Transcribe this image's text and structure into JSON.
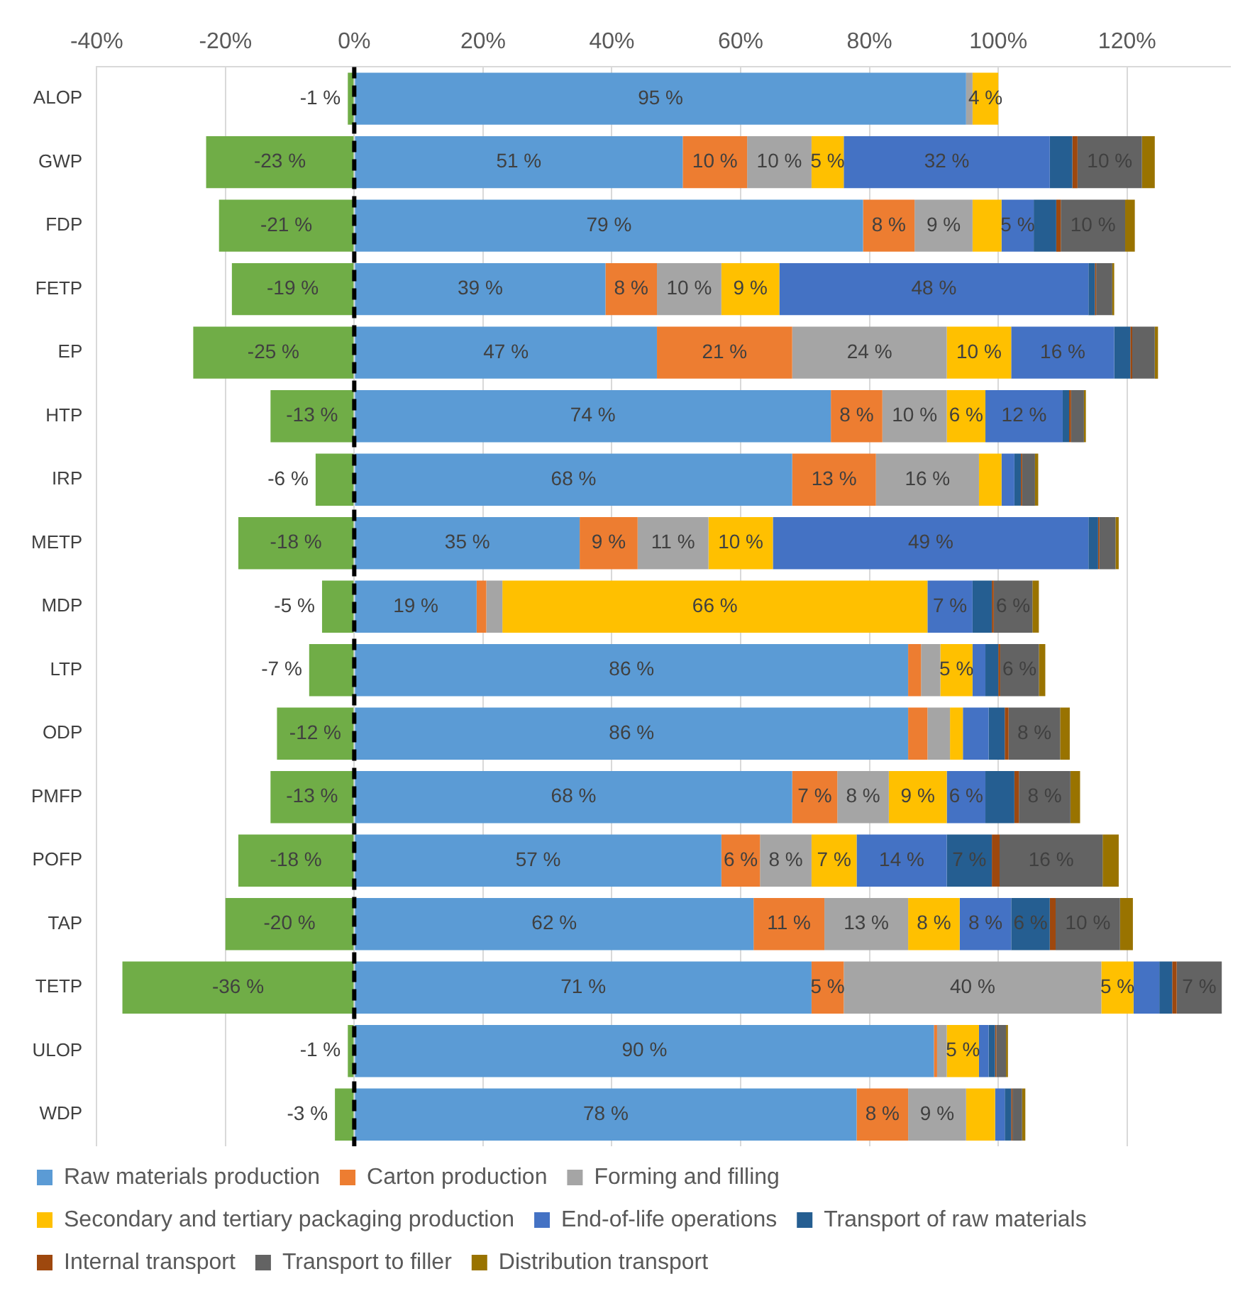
{
  "chart_data": {
    "type": "bar",
    "orientation": "horizontal",
    "stacked": true,
    "categories": [
      "ALOP",
      "GWP",
      "FDP",
      "FETP",
      "EP",
      "HTP",
      "IRP",
      "METP",
      "MDP",
      "LTP",
      "ODP",
      "PMFP",
      "POFP",
      "TAP",
      "TETP",
      "ULOP",
      "WDP"
    ],
    "series": [
      {
        "name": "Raw materials production",
        "color": "#5b9bd5",
        "values": [
          95,
          51,
          79,
          39,
          47,
          74,
          68,
          35,
          19,
          86,
          86,
          68,
          57,
          62,
          71,
          90,
          78
        ],
        "value_labels": [
          "95 %",
          "51 %",
          "79 %",
          "39 %",
          "47 %",
          "74 %",
          "68 %",
          "35 %",
          "19 %",
          "86 %",
          "86 %",
          "68 %",
          "57 %",
          "62 %",
          "71 %",
          "90 %",
          "78 %"
        ]
      },
      {
        "name": "Carton production",
        "color": "#ed7d31",
        "values": [
          null,
          10,
          8,
          8,
          21,
          8,
          13,
          9,
          1.5,
          2,
          3,
          7,
          6,
          11,
          5,
          0.5,
          8
        ],
        "value_labels": [
          null,
          "10 %",
          "8 %",
          "8 %",
          "21 %",
          "8 %",
          "13 %",
          "9 %",
          null,
          null,
          null,
          "7 %",
          "6 %",
          "11 %",
          "5 %",
          null,
          "8 %"
        ]
      },
      {
        "name": "Forming and filling",
        "color": "#a5a5a5",
        "values": [
          1,
          10,
          9,
          10,
          24,
          10,
          16,
          11,
          2.5,
          3,
          3.5,
          8,
          8,
          13,
          40,
          1.5,
          9
        ],
        "value_labels": [
          null,
          "10 %",
          "9 %",
          "10 %",
          "24 %",
          "10 %",
          "16 %",
          "11 %",
          null,
          null,
          null,
          "8 %",
          "8 %",
          "13 %",
          "40 %",
          null,
          "9 %"
        ]
      },
      {
        "name": "Secondary and tertiary packaging production",
        "color": "#ffc000",
        "values": [
          4,
          5,
          4.5,
          9,
          10,
          6,
          3.5,
          10,
          66,
          5,
          2,
          9,
          7,
          8,
          5,
          5,
          4.5
        ],
        "value_labels": [
          "4 %",
          "5 %",
          null,
          "9 %",
          "10 %",
          "6 %",
          null,
          "10 %",
          "66 %",
          "5 %",
          null,
          "9 %",
          "7 %",
          "8 %",
          "5 %",
          "5 %",
          null
        ]
      },
      {
        "name": "End-of-life operations",
        "color": "#4472c4",
        "values": [
          null,
          32,
          5,
          48,
          16,
          12,
          2,
          49,
          7,
          2,
          4,
          6,
          14,
          8,
          4,
          1.5,
          1.5
        ],
        "value_labels": [
          null,
          "32 %",
          "5 %",
          "48 %",
          "16 %",
          "12 %",
          null,
          "49 %",
          "7 %",
          null,
          null,
          "6 %",
          "14 %",
          "8 %",
          null,
          null,
          null
        ]
      },
      {
        "name": "Transport of raw materials",
        "color": "#255e91",
        "values": [
          null,
          3.5,
          3.5,
          1,
          2.5,
          1,
          1,
          1.5,
          3,
          2,
          2.5,
          4.5,
          7,
          6,
          2,
          1,
          1
        ],
        "value_labels": [
          null,
          null,
          null,
          null,
          null,
          null,
          null,
          null,
          null,
          null,
          null,
          null,
          "7 %",
          "6 %",
          null,
          null,
          null
        ]
      },
      {
        "name": "Internal transport",
        "color": "#9e480e",
        "values": [
          null,
          0.8,
          0.7,
          0.2,
          0.3,
          0.3,
          0.2,
          0.2,
          0.3,
          0.3,
          0.6,
          0.7,
          1.2,
          0.9,
          0.7,
          0.2,
          0.2
        ]
      },
      {
        "name": "Transport to filler",
        "color": "#636363",
        "values": [
          null,
          10,
          10,
          2.5,
          3.5,
          2,
          2,
          2.5,
          6,
          6,
          8,
          8,
          16,
          10,
          7,
          1.5,
          1.5
        ],
        "value_labels": [
          null,
          "10 %",
          "10 %",
          null,
          null,
          null,
          null,
          null,
          "6 %",
          "6 %",
          "8 %",
          "8 %",
          "16 %",
          "10 %",
          "7 %",
          null,
          null
        ]
      },
      {
        "name": "Distribution transport",
        "color": "#997300",
        "values": [
          null,
          2,
          1.5,
          0.3,
          0.5,
          0.3,
          0.5,
          0.5,
          1,
          1,
          1.5,
          1.5,
          2.5,
          2,
          null,
          0.3,
          0.5
        ]
      },
      {
        "color": "#70ad47",
        "values": [
          -1,
          -23,
          -21,
          -19,
          -25,
          -13,
          -6,
          -18,
          -5,
          -7,
          -12,
          -13,
          -18,
          -20,
          -36,
          -1,
          -3
        ],
        "value_labels": [
          "-1 %",
          "-23 %",
          "-21 %",
          "-19 %",
          "-25 %",
          "-13 %",
          "-6 %",
          "-18 %",
          "-5 %",
          "-7 %",
          "-12 %",
          "-13 %",
          "-18 %",
          "-20 %",
          "-36 %",
          "-1 %",
          "-3 %"
        ]
      }
    ],
    "xlim": [
      -40,
      136
    ],
    "xticks": [
      {
        "value": -40,
        "label": "-40%"
      },
      {
        "value": -20,
        "label": "-20%"
      },
      {
        "value": 0,
        "label": "0%"
      },
      {
        "value": 20,
        "label": "20%"
      },
      {
        "value": 40,
        "label": "40%"
      },
      {
        "value": 60,
        "label": "60%"
      },
      {
        "value": 80,
        "label": "80%"
      },
      {
        "value": 100,
        "label": "100%"
      },
      {
        "value": 120,
        "label": "120%"
      }
    ],
    "grid": "x",
    "legend": "bottom",
    "ref_lines": [
      {
        "axis": "x",
        "value": 0,
        "color": "#000000",
        "line_style": "dashed"
      }
    ]
  }
}
